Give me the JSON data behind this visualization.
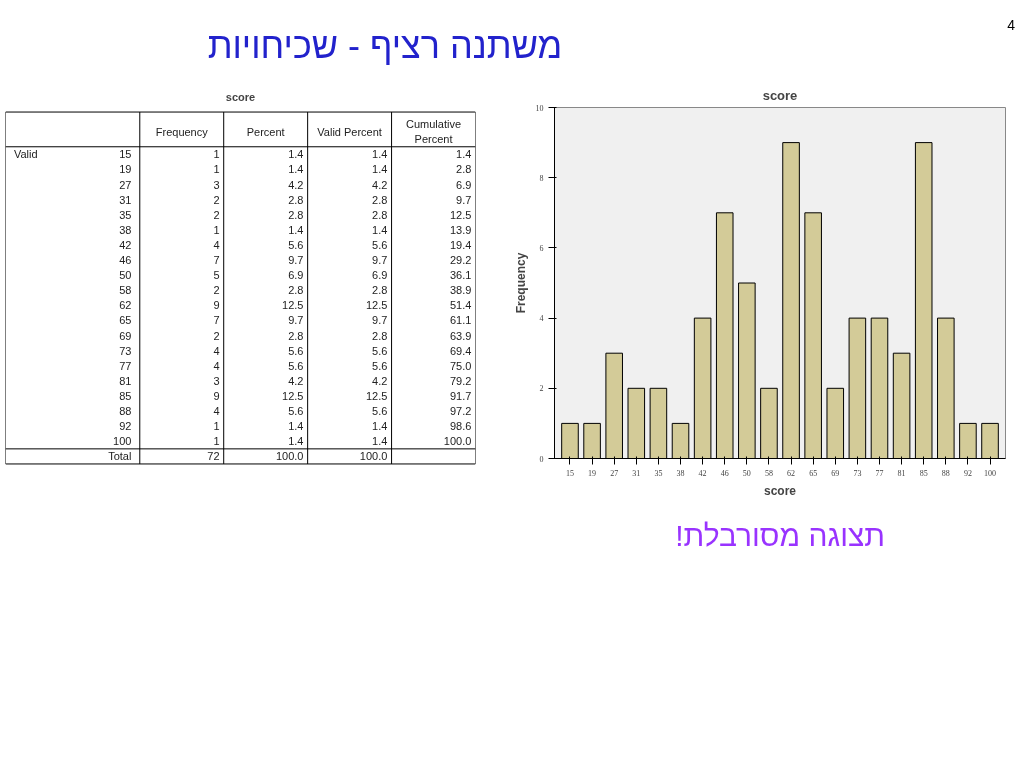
{
  "chart_data": [
    {
      "type": "heatmap",
      "title": "score",
      "categories": [
        "Frequency",
        "Percent",
        "Valid Percent",
        "Cumulative Percent"
      ],
      "y_categories": [
        "15",
        "19",
        "27",
        "31",
        "35",
        "38",
        "42",
        "46",
        "50",
        "58",
        "62",
        "65",
        "69",
        "73",
        "77",
        "81",
        "85",
        "88",
        "92",
        "100",
        "Total"
      ],
      "cells": [
        [
          1,
          1.4,
          1.4,
          1.4
        ],
        [
          1,
          1.4,
          1.4,
          2.8
        ],
        [
          3,
          4.2,
          4.2,
          6.9
        ],
        [
          2,
          2.8,
          2.8,
          9.7
        ],
        [
          2,
          2.8,
          2.8,
          12.5
        ],
        [
          1,
          1.4,
          1.4,
          13.9
        ],
        [
          4,
          5.6,
          5.6,
          19.4
        ],
        [
          7,
          9.7,
          9.7,
          29.2
        ],
        [
          5,
          6.9,
          6.9,
          36.1
        ],
        [
          2,
          2.8,
          2.8,
          38.9
        ],
        [
          9,
          12.5,
          12.5,
          51.4
        ],
        [
          7,
          9.7,
          9.7,
          61.1
        ],
        [
          2,
          2.8,
          2.8,
          63.9
        ],
        [
          4,
          5.6,
          5.6,
          69.4
        ],
        [
          4,
          5.6,
          5.6,
          75.0
        ],
        [
          3,
          4.2,
          4.2,
          79.2
        ],
        [
          9,
          12.5,
          12.5,
          91.7
        ],
        [
          4,
          5.6,
          5.6,
          97.2
        ],
        [
          1,
          1.4,
          1.4,
          98.6
        ],
        [
          1,
          1.4,
          1.4,
          100.0
        ],
        [
          72,
          100.0,
          100.0,
          null
        ]
      ],
      "cell_labels": [
        [
          "1",
          "1.4",
          "1.4",
          "1.4"
        ],
        [
          "1",
          "1.4",
          "1.4",
          "2.8"
        ],
        [
          "3",
          "4.2",
          "4.2",
          "6.9"
        ],
        [
          "2",
          "2.8",
          "2.8",
          "9.7"
        ],
        [
          "2",
          "2.8",
          "2.8",
          "12.5"
        ],
        [
          "1",
          "1.4",
          "1.4",
          "13.9"
        ],
        [
          "4",
          "5.6",
          "5.6",
          "19.4"
        ],
        [
          "7",
          "9.7",
          "9.7",
          "29.2"
        ],
        [
          "5",
          "6.9",
          "6.9",
          "36.1"
        ],
        [
          "2",
          "2.8",
          "2.8",
          "38.9"
        ],
        [
          "9",
          "12.5",
          "12.5",
          "51.4"
        ],
        [
          "7",
          "9.7",
          "9.7",
          "61.1"
        ],
        [
          "2",
          "2.8",
          "2.8",
          "63.9"
        ],
        [
          "4",
          "5.6",
          "5.6",
          "69.4"
        ],
        [
          "4",
          "5.6",
          "5.6",
          "75.0"
        ],
        [
          "3",
          "4.2",
          "4.2",
          "79.2"
        ],
        [
          "9",
          "12.5",
          "12.5",
          "91.7"
        ],
        [
          "4",
          "5.6",
          "5.6",
          "97.2"
        ],
        [
          "1",
          "1.4",
          "1.4",
          "98.6"
        ],
        [
          "1",
          "1.4",
          "1.4",
          "100.0"
        ],
        [
          "72",
          "100.0",
          "100.0",
          null
        ]
      ],
      "data_labels": true,
      "annotations": [
        "Valid"
      ]
    },
    {
      "type": "bar",
      "title": "score",
      "xlabel": "score",
      "ylabel": "Frequency",
      "categories": [
        "15",
        "19",
        "27",
        "31",
        "35",
        "38",
        "42",
        "46",
        "50",
        "58",
        "62",
        "65",
        "69",
        "73",
        "77",
        "81",
        "85",
        "88",
        "92",
        "100"
      ],
      "values": [
        1,
        1,
        3,
        2,
        2,
        1,
        4,
        7,
        5,
        2,
        9,
        7,
        2,
        4,
        4,
        3,
        9,
        4,
        1,
        1
      ],
      "color": "#d3cb98",
      "ylim": [
        0,
        10
      ],
      "yticks": [
        0,
        2,
        4,
        6,
        8,
        10
      ],
      "grid": false,
      "annotations": [
        "משתנה רציף - שכיחויות",
        "4",
        "תצוגה מסורבלת!"
      ]
    }
  ]
}
